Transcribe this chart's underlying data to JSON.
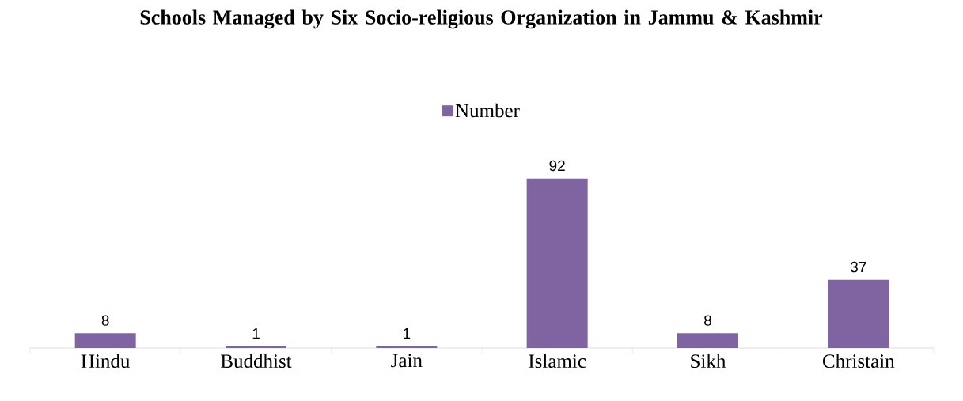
{
  "chart_data": {
    "type": "bar",
    "title": "Schools Managed by Six Socio-religious Organization in Jammu & Kashmir",
    "categories": [
      "Hindu",
      "Buddhist",
      "Jain",
      "Islamic",
      "Sikh",
      "Christain"
    ],
    "series": [
      {
        "name": "Number",
        "color": "#8064a2",
        "values": [
          8,
          1,
          1,
          92,
          8,
          37
        ]
      }
    ],
    "data_labels": true,
    "legend": "top"
  }
}
